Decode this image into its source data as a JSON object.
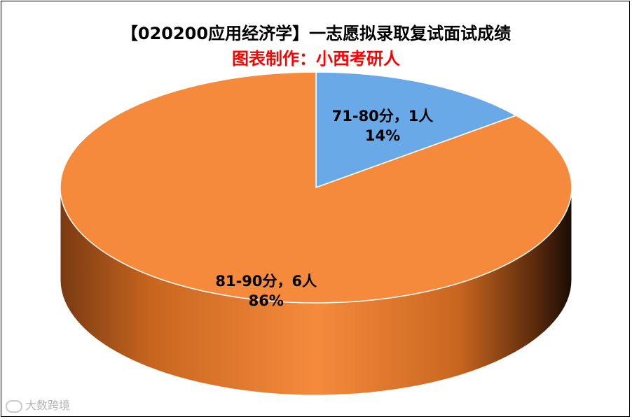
{
  "chart_data": {
    "type": "pie",
    "title": "【020200应用经济学】一志愿拟录取复试面试成绩",
    "subtitle": "图表制作：小西考研人",
    "slices": [
      {
        "label": "71-80分，1人",
        "value": 1,
        "percent": "14%",
        "color": "#6aa9e8"
      },
      {
        "label": "81-90分，6人",
        "value": 6,
        "percent": "86%",
        "color": "#f58a3c"
      }
    ]
  },
  "colors": {
    "subtitle": "#ff0000",
    "side_dark": "#6b3210",
    "side_light": "#e07a30"
  },
  "watermark": {
    "icon": "weibo-logo-icon",
    "text": "大数跨境"
  }
}
